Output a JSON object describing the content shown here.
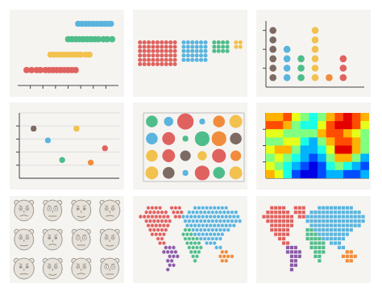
{
  "chart_data": [
    {
      "type": "strip",
      "series": [
        {
          "color": "#5ab4de",
          "x": [
            4.8,
            5.1,
            5.4,
            5.7,
            6.0,
            6.3,
            6.6,
            6.9,
            7.1,
            7.4
          ],
          "y": [
            4,
            4,
            4,
            4,
            4,
            4,
            4,
            4,
            4,
            4
          ]
        },
        {
          "color": "#4fbd8a",
          "x": [
            4.0,
            4.3,
            4.6,
            4.9,
            5.2,
            5.5,
            5.8,
            6.1,
            6.4,
            6.8,
            7.1,
            7.5
          ],
          "y": [
            3,
            3,
            3,
            3,
            3,
            3,
            3,
            3,
            3,
            3,
            3,
            3
          ]
        },
        {
          "color": "#f2c14e",
          "x": [
            2.6,
            2.9,
            3.2,
            3.5,
            3.8,
            4.1,
            4.4,
            4.7,
            5.0,
            5.4,
            5.7
          ],
          "y": [
            2,
            2,
            2,
            2,
            2,
            2,
            2,
            2,
            2,
            2,
            2
          ]
        },
        {
          "color": "#e0625f",
          "x": [
            0.7,
            1.1,
            1.5,
            1.8,
            2.2,
            2.5,
            2.8,
            3.1,
            3.4,
            3.7,
            4.0,
            4.3,
            4.6
          ],
          "y": [
            1,
            1,
            1,
            1,
            1,
            1,
            1,
            1,
            1,
            1,
            1,
            1,
            1
          ]
        }
      ],
      "xlim": [
        0,
        8
      ],
      "xticks": [
        1,
        2,
        3,
        4,
        5,
        6,
        7
      ],
      "ylim": [
        0,
        4.5
      ],
      "tick_labels": false
    },
    {
      "type": "unit",
      "values": [
        54,
        30,
        12,
        4
      ],
      "colors": [
        "#e0625f",
        "#5ab4de",
        "#4fbd8a",
        "#f2c14e"
      ],
      "tick_labels": false
    },
    {
      "type": "dotplot",
      "values": [
        6,
        4,
        3,
        6,
        1,
        3
      ],
      "colors": [
        "#7d6b63",
        "#5ab4de",
        "#4fbd8a",
        "#f2c14e",
        "#f08c3c",
        "#e0625f"
      ],
      "xlim": [
        0.5,
        7.5
      ],
      "ylim": [
        0,
        7
      ],
      "yticks": [
        2,
        4,
        6
      ],
      "tick_labels": false
    },
    {
      "type": "scatter",
      "x": [
        1,
        2,
        3,
        4,
        5,
        6
      ],
      "y": [
        3.8,
        2.9,
        1.4,
        3.8,
        1.2,
        2.3
      ],
      "colors": [
        "#7d6b63",
        "#5ab4de",
        "#4fbd8a",
        "#f2c14e",
        "#f08c3c",
        "#e0625f"
      ],
      "xlim": [
        0,
        7
      ],
      "ylim": [
        0,
        5
      ],
      "yticks": [
        1,
        2,
        3,
        4
      ],
      "grid": true,
      "tick_labels": false
    },
    {
      "type": "bubble",
      "x": [
        0.5,
        1.5,
        2.5,
        3.5,
        4.5,
        5.5,
        0.5,
        1.5,
        2.5,
        3.5,
        4.5,
        5.5,
        0.5,
        1.5,
        2.5,
        3.5,
        4.5,
        5.5,
        0.5,
        1.5,
        2.5,
        3.5,
        4.5,
        5.5
      ],
      "y": [
        3.5,
        3.5,
        3.5,
        3.5,
        3.5,
        3.5,
        2.5,
        2.5,
        2.5,
        2.5,
        2.5,
        2.5,
        1.5,
        1.5,
        1.5,
        1.5,
        1.5,
        1.5,
        0.5,
        0.5,
        0.5,
        0.5,
        0.5,
        0.5
      ],
      "size": [
        5,
        3,
        10,
        1,
        5,
        6,
        5,
        6,
        1,
        8,
        8,
        5,
        5,
        6,
        4,
        3,
        7,
        4,
        6,
        5,
        1,
        8,
        5,
        6
      ],
      "colors": [
        "#4fbd8a",
        "#5ab4de",
        "#e0625f",
        "#5ab4de",
        "#f08c3c",
        "#f2c14e",
        "#5ab4de",
        "#e0625f",
        "#4fbd8a",
        "#4fbd8a",
        "#f08c3c",
        "#7d6b63",
        "#f2c14e",
        "#e0625f",
        "#7d6b63",
        "#f2c14e",
        "#e0625f",
        "#f08c3c",
        "#f2c14e",
        "#7d6b63",
        "#5ab4de",
        "#e0625f",
        "#4fbd8a",
        "#f2c14e"
      ],
      "xlim": [
        0,
        6
      ],
      "xticks": [
        0,
        1,
        2,
        3,
        4,
        5,
        6
      ],
      "ylim": [
        0,
        4
      ],
      "yticks": [
        0,
        1,
        2,
        3,
        4
      ],
      "grid": true,
      "tick_labels": false
    },
    {
      "type": "heatmap",
      "z": [
        [
          7,
          7,
          8,
          6,
          5,
          4,
          5,
          7,
          8,
          9,
          8,
          7
        ],
        [
          8,
          8,
          7,
          5,
          4,
          4,
          6,
          8,
          9,
          9,
          8,
          6
        ],
        [
          6,
          6,
          5,
          5,
          5,
          5,
          7,
          8,
          8,
          7,
          6,
          5
        ],
        [
          5,
          5,
          6,
          6,
          4,
          3,
          5,
          7,
          8,
          8,
          7,
          5
        ],
        [
          6,
          7,
          7,
          5,
          3,
          3,
          4,
          6,
          9,
          9,
          7,
          5
        ],
        [
          5,
          6,
          5,
          4,
          3,
          2,
          3,
          5,
          7,
          7,
          5,
          3
        ],
        [
          6,
          5,
          4,
          3,
          2,
          1,
          2,
          4,
          5,
          4,
          3,
          2
        ],
        [
          7,
          6,
          4,
          2,
          1,
          1,
          2,
          3,
          3,
          2,
          2,
          3
        ]
      ],
      "zlim": [
        0,
        10
      ],
      "xlim": [
        0,
        12
      ],
      "ylim": [
        0,
        8
      ],
      "yticks": [
        2,
        4,
        6
      ],
      "tick_labels": false
    },
    {
      "type": "chernoff",
      "x": [
        1,
        2,
        3,
        4,
        1,
        2,
        3,
        4,
        1,
        2,
        3,
        4
      ],
      "y": [
        3,
        3,
        3,
        3,
        2,
        2,
        2,
        2,
        1,
        1,
        1,
        1
      ],
      "head": [
        1,
        0.95,
        1,
        1.05,
        1,
        1,
        0.95,
        1,
        1.05,
        1,
        1,
        0.95
      ],
      "eyes": [
        2,
        2.5,
        1.5,
        2,
        2,
        1.5,
        2.5,
        2,
        1.5,
        2,
        2,
        2.5
      ],
      "mouth": [
        -0.5,
        0,
        0.5,
        -0.3,
        0.3,
        -0.5,
        0,
        0.4,
        -0.2,
        0.5,
        -0.4,
        0
      ],
      "xlim": [
        0.5,
        4.5
      ],
      "ylim": [
        0.5,
        3.5
      ],
      "tick_labels": false
    },
    {
      "type": "map",
      "marker": "hexagon",
      "tick_labels": false,
      "regions": [
        {
          "color": "#e0625f",
          "spans": [
            [
              0,
              2,
              5
            ],
            [
              0,
              8,
              10
            ],
            [
              1,
              1,
              6
            ],
            [
              1,
              8,
              10
            ],
            [
              2,
              0,
              7
            ],
            [
              2,
              9,
              10
            ],
            [
              3,
              1,
              7
            ],
            [
              4,
              2,
              7
            ],
            [
              5,
              2,
              6
            ],
            [
              6,
              3,
              6
            ],
            [
              7,
              4,
              5
            ],
            [
              8,
              5,
              6
            ]
          ]
        },
        {
          "color": "#8b5aa8",
          "spans": [
            [
              9,
              6,
              8
            ],
            [
              10,
              6,
              9
            ],
            [
              11,
              7,
              9
            ],
            [
              12,
              7,
              8
            ],
            [
              13,
              7,
              8
            ],
            [
              14,
              7,
              7
            ]
          ]
        },
        {
          "color": "#5ab4de",
          "spans": [
            [
              0,
              14,
              22
            ],
            [
              1,
              12,
              24
            ],
            [
              2,
              11,
              25
            ],
            [
              3,
              11,
              25
            ],
            [
              4,
              12,
              24
            ],
            [
              5,
              13,
              22
            ],
            [
              6,
              14,
              21
            ],
            [
              7,
              15,
              20
            ],
            [
              8,
              17,
              19
            ],
            [
              9,
              19,
              20
            ]
          ]
        },
        {
          "color": "#4fbd8a",
          "spans": [
            [
              5,
              11,
              12
            ],
            [
              6,
              11,
              13
            ],
            [
              7,
              11,
              14
            ],
            [
              8,
              12,
              15
            ],
            [
              9,
              12,
              15
            ],
            [
              10,
              13,
              15
            ],
            [
              11,
              13,
              14
            ],
            [
              12,
              14,
              14
            ]
          ]
        },
        {
          "color": "#f08c3c",
          "spans": [
            [
              10,
              21,
              22
            ],
            [
              11,
              20,
              23
            ],
            [
              12,
              21,
              22
            ]
          ]
        }
      ]
    },
    {
      "type": "map",
      "marker": "square",
      "tick_labels": false,
      "regions": [
        {
          "color": "#e0625f",
          "spans": [
            [
              0,
              2,
              5
            ],
            [
              0,
              8,
              10
            ],
            [
              1,
              1,
              6
            ],
            [
              1,
              8,
              10
            ],
            [
              2,
              0,
              7
            ],
            [
              2,
              9,
              10
            ],
            [
              3,
              1,
              7
            ],
            [
              4,
              2,
              7
            ],
            [
              5,
              2,
              6
            ],
            [
              6,
              3,
              6
            ],
            [
              7,
              4,
              5
            ],
            [
              8,
              5,
              6
            ]
          ]
        },
        {
          "color": "#8b5aa8",
          "spans": [
            [
              9,
              6,
              8
            ],
            [
              10,
              6,
              9
            ],
            [
              11,
              7,
              9
            ],
            [
              12,
              7,
              8
            ],
            [
              13,
              7,
              8
            ],
            [
              14,
              7,
              7
            ]
          ]
        },
        {
          "color": "#5ab4de",
          "spans": [
            [
              0,
              14,
              22
            ],
            [
              1,
              12,
              24
            ],
            [
              2,
              11,
              25
            ],
            [
              3,
              11,
              25
            ],
            [
              4,
              12,
              24
            ],
            [
              5,
              13,
              22
            ],
            [
              6,
              14,
              21
            ],
            [
              7,
              15,
              20
            ],
            [
              8,
              17,
              19
            ],
            [
              9,
              19,
              20
            ]
          ]
        },
        {
          "color": "#4fbd8a",
          "spans": [
            [
              5,
              11,
              12
            ],
            [
              6,
              11,
              13
            ],
            [
              7,
              11,
              14
            ],
            [
              8,
              12,
              15
            ],
            [
              9,
              12,
              15
            ],
            [
              10,
              13,
              15
            ],
            [
              11,
              13,
              14
            ],
            [
              12,
              14,
              14
            ]
          ]
        },
        {
          "color": "#f08c3c",
          "spans": [
            [
              10,
              21,
              22
            ],
            [
              11,
              20,
              23
            ],
            [
              12,
              21,
              22
            ]
          ]
        }
      ]
    }
  ]
}
